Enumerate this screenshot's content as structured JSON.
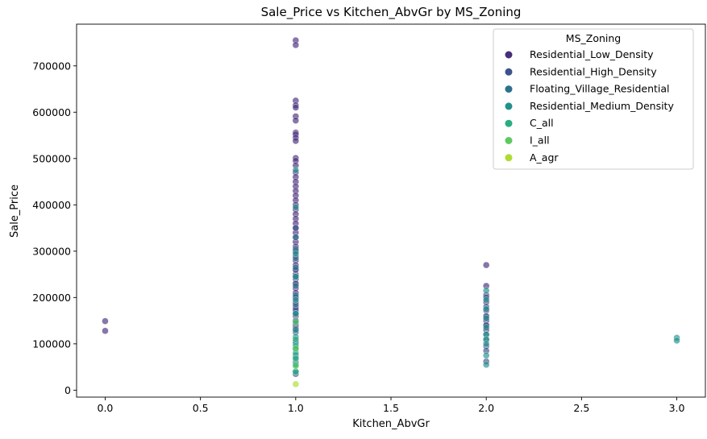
{
  "chart_data": {
    "type": "scatter",
    "title": "Sale_Price vs Kitchen_AbvGr by MS_Zoning",
    "xlabel": "Kitchen_AbvGr",
    "ylabel": "Sale_Price",
    "xlim": [
      -0.15,
      3.15
    ],
    "ylim": [
      -15000,
      790000
    ],
    "x_ticks": [
      0.0,
      0.5,
      1.0,
      1.5,
      2.0,
      2.5,
      3.0
    ],
    "x_tick_labels": [
      "0.0",
      "0.5",
      "1.0",
      "1.5",
      "2.0",
      "2.5",
      "3.0"
    ],
    "y_ticks": [
      0,
      100000,
      200000,
      300000,
      400000,
      500000,
      600000,
      700000
    ],
    "y_tick_labels": [
      "0",
      "100000",
      "200000",
      "300000",
      "400000",
      "500000",
      "600000",
      "700000"
    ],
    "grid": false,
    "legend": {
      "title": "MS_Zoning",
      "position": "top-right"
    },
    "series": [
      {
        "name": "Residential_Low_Density",
        "color": "#472d7b",
        "points": [
          [
            0,
            128000
          ],
          [
            0,
            149000
          ],
          [
            1,
            755000
          ],
          [
            1,
            745000
          ],
          [
            1,
            625000
          ],
          [
            1,
            615000
          ],
          [
            1,
            610000
          ],
          [
            1,
            591000
          ],
          [
            1,
            582000
          ],
          [
            1,
            556000
          ],
          [
            1,
            552000
          ],
          [
            1,
            545000
          ],
          [
            1,
            538000
          ],
          [
            1,
            501000
          ],
          [
            1,
            495000
          ],
          [
            1,
            485000
          ],
          [
            1,
            470000
          ],
          [
            1,
            460000
          ],
          [
            1,
            450000
          ],
          [
            1,
            440000
          ],
          [
            1,
            430000
          ],
          [
            1,
            420000
          ],
          [
            1,
            410000
          ],
          [
            1,
            400000
          ],
          [
            1,
            390000
          ],
          [
            1,
            380000
          ],
          [
            1,
            370000
          ],
          [
            1,
            360000
          ],
          [
            1,
            350000
          ],
          [
            1,
            340000
          ],
          [
            1,
            330000
          ],
          [
            1,
            320000
          ],
          [
            1,
            310000
          ],
          [
            1,
            300000
          ],
          [
            1,
            290000
          ],
          [
            1,
            280000
          ],
          [
            1,
            270000
          ],
          [
            1,
            260000
          ],
          [
            1,
            250000
          ],
          [
            1,
            240000
          ],
          [
            1,
            230000
          ],
          [
            1,
            220000
          ],
          [
            1,
            210000
          ],
          [
            1,
            200000
          ],
          [
            1,
            190000
          ],
          [
            1,
            180000
          ],
          [
            1,
            170000
          ],
          [
            1,
            160000
          ],
          [
            1,
            150000
          ],
          [
            1,
            140000
          ],
          [
            1,
            133000
          ],
          [
            2,
            270000
          ],
          [
            2,
            225000
          ],
          [
            2,
            205000
          ],
          [
            2,
            190000
          ],
          [
            2,
            172000
          ],
          [
            2,
            158000
          ],
          [
            2,
            150000
          ],
          [
            2,
            140000
          ],
          [
            2,
            130000
          ]
        ]
      },
      {
        "name": "Residential_High_Density",
        "color": "#3b528b",
        "points": [
          [
            1,
            350000
          ],
          [
            1,
            300000
          ],
          [
            1,
            260000
          ],
          [
            1,
            230000
          ],
          [
            1,
            200000
          ],
          [
            1,
            175000
          ],
          [
            1,
            150000
          ],
          [
            1,
            125000
          ],
          [
            1,
            105000
          ],
          [
            1,
            90000
          ],
          [
            1,
            75000
          ],
          [
            1,
            60000
          ],
          [
            1,
            35000
          ],
          [
            2,
            200000
          ],
          [
            2,
            180000
          ],
          [
            2,
            160000
          ],
          [
            2,
            140000
          ],
          [
            2,
            120000
          ],
          [
            2,
            108000
          ],
          [
            2,
            95000
          ],
          [
            2,
            85000
          ],
          [
            2,
            62000
          ]
        ]
      },
      {
        "name": "Floating_Village_Residential",
        "color": "#2c728e",
        "points": [
          [
            1,
            330000
          ],
          [
            1,
            305000
          ],
          [
            1,
            285000
          ],
          [
            1,
            265000
          ],
          [
            1,
            245000
          ],
          [
            1,
            225000
          ],
          [
            1,
            205000
          ],
          [
            1,
            185000
          ],
          [
            1,
            165000
          ]
        ]
      },
      {
        "name": "Residential_Medium_Density",
        "color": "#21918c",
        "points": [
          [
            1,
            475000
          ],
          [
            1,
            395000
          ],
          [
            1,
            295000
          ],
          [
            1,
            245000
          ],
          [
            1,
            195000
          ],
          [
            1,
            165000
          ],
          [
            1,
            145000
          ],
          [
            1,
            130000
          ],
          [
            1,
            115000
          ],
          [
            1,
            100000
          ],
          [
            1,
            88000
          ],
          [
            1,
            70000
          ],
          [
            1,
            55000
          ],
          [
            1,
            40000
          ],
          [
            2,
            215000
          ],
          [
            2,
            195000
          ],
          [
            2,
            175000
          ],
          [
            2,
            155000
          ],
          [
            2,
            135000
          ],
          [
            2,
            120000
          ],
          [
            2,
            110000
          ],
          [
            2,
            100000
          ],
          [
            2,
            75000
          ],
          [
            2,
            55000
          ],
          [
            3,
            113000
          ],
          [
            3,
            107000
          ]
        ]
      },
      {
        "name": "C_all",
        "color": "#28ae80",
        "points": [
          [
            1,
            110000
          ],
          [
            1,
            95000
          ],
          [
            1,
            80000
          ],
          [
            1,
            68000
          ],
          [
            1,
            55000
          ],
          [
            1,
            40000
          ]
        ]
      },
      {
        "name": "I_all",
        "color": "#5ec962",
        "points": [
          [
            1,
            148000
          ],
          [
            1,
            90000
          ],
          [
            1,
            52000
          ]
        ]
      },
      {
        "name": "A_agr",
        "color": "#addc30",
        "points": [
          [
            1,
            13000
          ]
        ]
      }
    ]
  }
}
